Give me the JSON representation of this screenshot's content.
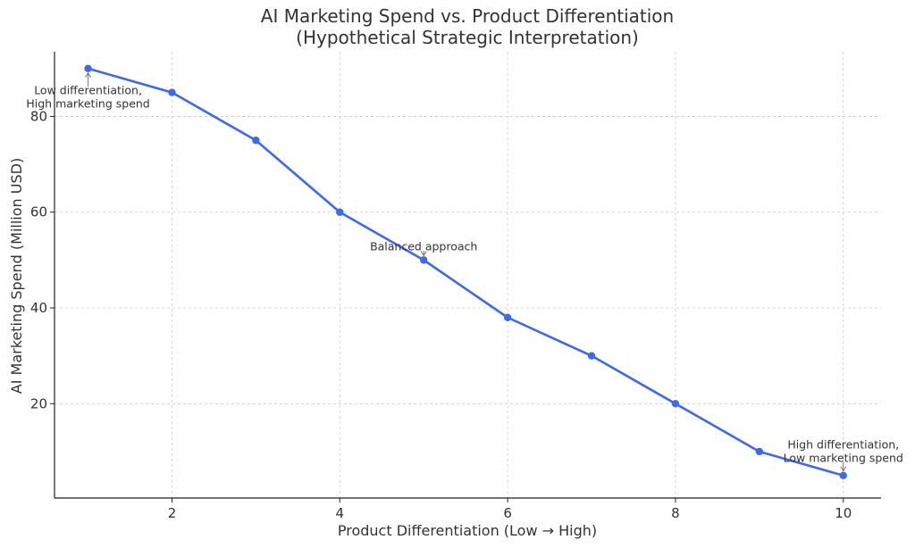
{
  "chart_data": {
    "type": "line",
    "title": "AI Marketing Spend vs. Product Differentiation",
    "subtitle": "(Hypothetical Strategic Interpretation)",
    "xlabel": "Product Differentiation (Low → High)",
    "ylabel": "AI Marketing Spend (Million USD)",
    "xlim": [
      0.6,
      10.45
    ],
    "ylim": [
      0.3,
      93.5
    ],
    "x_ticks": [
      2,
      4,
      6,
      8,
      10
    ],
    "y_ticks": [
      20,
      40,
      60,
      80
    ],
    "grid": true,
    "series": [
      {
        "color": "#4169E1",
        "x": [
          1,
          2,
          3,
          4,
          5,
          6,
          7,
          8,
          9,
          10
        ],
        "y": [
          90,
          85,
          75,
          60,
          50,
          38,
          30,
          20,
          10,
          5
        ]
      }
    ],
    "annotations": [
      {
        "lines": [
          "Low differentiation,",
          "High marketing spend"
        ],
        "point": [
          1,
          90
        ],
        "text_at": [
          1,
          84
        ]
      },
      {
        "lines": [
          "Balanced approach"
        ],
        "point": [
          5,
          50
        ],
        "text_at": [
          5,
          52.8
        ]
      },
      {
        "lines": [
          "High differentiation,",
          "Low marketing spend"
        ],
        "point": [
          10,
          5
        ],
        "text_at": [
          10,
          10
        ]
      }
    ]
  }
}
